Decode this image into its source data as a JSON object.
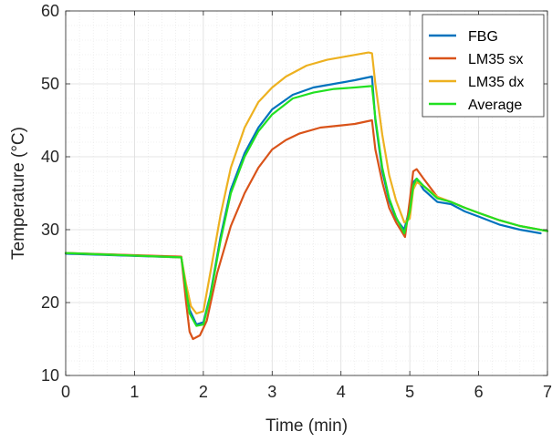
{
  "chart_data": {
    "type": "line",
    "xlabel": "Time (min)",
    "ylabel": "Temperature (°C)",
    "xlim": [
      0,
      7
    ],
    "ylim": [
      10,
      60
    ],
    "x_ticks": [
      0,
      1,
      2,
      3,
      4,
      5,
      6,
      7
    ],
    "y_ticks": [
      10,
      20,
      30,
      40,
      50,
      60
    ],
    "grid": "major and minor",
    "legend_position": "top-right",
    "series": [
      {
        "name": "FBG",
        "color": "#0072BD",
        "x": [
          0,
          1.68,
          1.75,
          1.8,
          1.9,
          2.0,
          2.1,
          2.25,
          2.4,
          2.6,
          2.8,
          3.0,
          3.3,
          3.6,
          3.9,
          4.2,
          4.45,
          4.5,
          4.6,
          4.7,
          4.8,
          4.92,
          5.0,
          5.05,
          5.1,
          5.2,
          5.4,
          5.6,
          5.8,
          6.0,
          6.3,
          6.6,
          6.9
        ],
        "y": [
          26.7,
          26.2,
          22.0,
          19.0,
          17.0,
          17.3,
          21.0,
          29.0,
          35.5,
          40.5,
          44.0,
          46.5,
          48.5,
          49.5,
          50.0,
          50.5,
          51.0,
          45.0,
          38.0,
          34.0,
          31.5,
          30.0,
          33.0,
          36.5,
          37.0,
          35.5,
          33.8,
          33.5,
          32.5,
          31.8,
          30.7,
          30.0,
          29.5
        ]
      },
      {
        "name": "LM35 sx",
        "color": "#D95319",
        "x": [
          0,
          1.68,
          1.75,
          1.8,
          1.85,
          1.95,
          2.05,
          2.2,
          2.4,
          2.6,
          2.8,
          3.0,
          3.2,
          3.4,
          3.7,
          4.0,
          4.2,
          4.45,
          4.5,
          4.6,
          4.7,
          4.8,
          4.93,
          5.0,
          5.05,
          5.1,
          5.2,
          5.4,
          5.6,
          5.8,
          6.0,
          6.3,
          6.6,
          7.0
        ],
        "y": [
          26.8,
          26.3,
          20.0,
          16.0,
          15.0,
          15.5,
          17.5,
          24.0,
          30.5,
          35.0,
          38.5,
          41.0,
          42.3,
          43.2,
          44.0,
          44.3,
          44.5,
          45.0,
          41.0,
          36.5,
          33.0,
          31.0,
          29.0,
          34.0,
          38.0,
          38.3,
          37.0,
          34.5,
          33.8,
          33.0,
          32.3,
          31.3,
          30.5,
          29.8
        ]
      },
      {
        "name": "LM35 dx",
        "color": "#EDB120",
        "x": [
          0,
          1.68,
          1.75,
          1.82,
          1.9,
          2.0,
          2.1,
          2.25,
          2.4,
          2.6,
          2.8,
          3.0,
          3.2,
          3.5,
          3.8,
          4.1,
          4.4,
          4.45,
          4.5,
          4.6,
          4.7,
          4.8,
          4.92,
          5.0,
          5.05,
          5.1,
          5.2,
          5.4,
          5.6,
          5.8,
          6.0,
          6.3,
          6.6,
          7.0
        ],
        "y": [
          26.8,
          26.2,
          22.5,
          19.5,
          18.5,
          18.8,
          24.0,
          32.0,
          38.5,
          44.0,
          47.5,
          49.5,
          51.0,
          52.5,
          53.3,
          53.8,
          54.3,
          54.2,
          50.0,
          43.0,
          37.5,
          34.0,
          31.0,
          31.5,
          35.5,
          36.5,
          36.0,
          34.5,
          33.8,
          33.0,
          32.3,
          31.3,
          30.5,
          29.8
        ]
      },
      {
        "name": "Average",
        "color": "#21E021",
        "x": [
          0,
          1.68,
          1.75,
          1.8,
          1.9,
          2.0,
          2.1,
          2.25,
          2.4,
          2.6,
          2.8,
          3.0,
          3.3,
          3.6,
          3.9,
          4.2,
          4.45,
          4.5,
          4.6,
          4.7,
          4.8,
          4.92,
          5.0,
          5.05,
          5.1,
          5.2,
          5.4,
          5.6,
          5.8,
          6.0,
          6.3,
          6.6,
          7.0
        ],
        "y": [
          26.8,
          26.2,
          21.7,
          18.5,
          16.8,
          17.0,
          20.8,
          28.5,
          35.0,
          40.0,
          43.5,
          45.8,
          48.0,
          48.8,
          49.3,
          49.5,
          49.7,
          45.3,
          38.5,
          34.3,
          31.7,
          29.5,
          32.5,
          36.0,
          37.0,
          36.0,
          34.3,
          33.8,
          33.0,
          32.3,
          31.3,
          30.5,
          29.8
        ]
      }
    ]
  }
}
